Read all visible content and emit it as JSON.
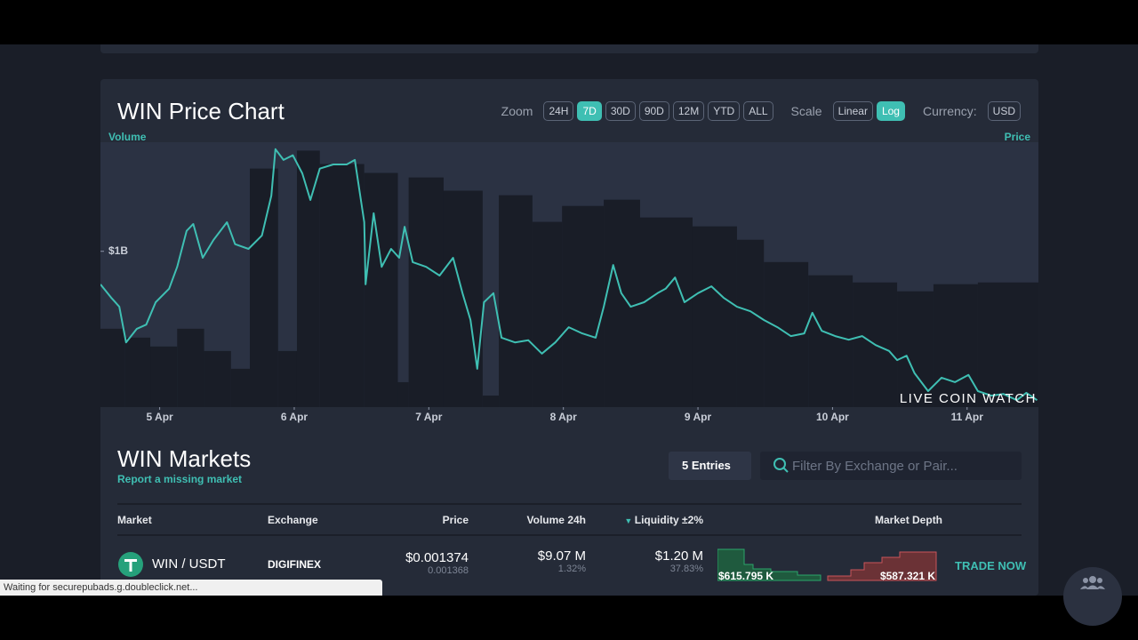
{
  "chart_data": {
    "type": "line",
    "title": "WIN Price Chart",
    "y_label": "Volume",
    "y2_label": "Price",
    "xlim": [
      4.56,
      11.53
    ],
    "xticks": [
      {
        "value": 5,
        "label": "5 Apr"
      },
      {
        "value": 6,
        "label": "6 Apr"
      },
      {
        "value": 7,
        "label": "7 Apr"
      },
      {
        "value": 8,
        "label": "8 Apr"
      },
      {
        "value": 9,
        "label": "9 Apr"
      },
      {
        "value": 10,
        "label": "10 Apr"
      },
      {
        "value": 11,
        "label": "11 Apr"
      }
    ],
    "ylim": [
      0,
      1700000000
    ],
    "yticks": [
      {
        "value": 1000000000,
        "label": "$1B"
      }
    ],
    "y2lim": [
      0.0013,
      0.00185
    ],
    "y2_log": true,
    "series": [
      {
        "name": "Volume",
        "type": "bar",
        "color": "#191d27",
        "x": [
          4.56,
          4.74,
          4.93,
          5.13,
          5.33,
          5.53,
          5.67,
          5.88,
          6.02,
          6.19,
          6.52,
          6.77,
          6.85,
          7.11,
          7.4,
          7.52,
          7.77,
          7.99,
          8.3,
          8.57,
          8.96,
          9.29,
          9.49,
          9.82,
          10.15,
          10.48,
          10.75,
          11.08
        ],
        "values": [
          503000000,
          446000000,
          389000000,
          503000000,
          360000000,
          246000000,
          1531000000,
          360000000,
          1646000000,
          1560000000,
          1503000000,
          160000000,
          1474000000,
          1389000000,
          74000000,
          1360000000,
          1189000000,
          1291000000,
          1331000000,
          1217000000,
          1160000000,
          1074000000,
          931000000,
          846000000,
          800000000,
          743000000,
          789000000,
          800000000
        ]
      },
      {
        "name": "Price",
        "axis": "y2",
        "color": "#3fbfb3",
        "x": [
          4.56,
          4.64,
          4.7,
          4.75,
          4.83,
          4.9,
          4.97,
          5.07,
          5.13,
          5.2,
          5.25,
          5.32,
          5.4,
          5.5,
          5.56,
          5.66,
          5.76,
          5.83,
          5.86,
          5.92,
          5.99,
          6.06,
          6.12,
          6.19,
          6.29,
          6.39,
          6.45,
          6.52,
          6.53,
          6.59,
          6.65,
          6.72,
          6.78,
          6.82,
          6.88,
          6.98,
          7.08,
          7.18,
          7.25,
          7.31,
          7.36,
          7.41,
          7.48,
          7.54,
          7.64,
          7.74,
          7.84,
          7.94,
          8.04,
          8.14,
          8.24,
          8.3,
          8.37,
          8.43,
          8.5,
          8.6,
          8.7,
          8.76,
          8.83,
          8.9,
          9.0,
          9.1,
          9.19,
          9.29,
          9.39,
          9.49,
          9.59,
          9.69,
          9.79,
          9.85,
          9.92,
          10.02,
          10.12,
          10.22,
          10.32,
          10.42,
          10.48,
          10.55,
          10.61,
          10.71,
          10.81,
          10.91,
          11.01,
          11.08,
          11.18,
          11.27,
          11.37,
          11.44,
          11.52
        ],
        "values": [
          0.001531,
          0.001504,
          0.001486,
          0.001417,
          0.001443,
          0.001451,
          0.001495,
          0.001522,
          0.001567,
          0.001644,
          0.001659,
          0.001586,
          0.001624,
          0.001663,
          0.001615,
          0.001605,
          0.001634,
          0.001723,
          0.001833,
          0.001807,
          0.001818,
          0.001775,
          0.001713,
          0.001786,
          0.001796,
          0.001796,
          0.001807,
          0.001663,
          0.001531,
          0.001683,
          0.001567,
          0.001605,
          0.001586,
          0.001653,
          0.001577,
          0.001567,
          0.001549,
          0.001586,
          0.001513,
          0.00146,
          0.001368,
          0.001495,
          0.001513,
          0.001426,
          0.001417,
          0.001421,
          0.001396,
          0.001417,
          0.001446,
          0.001434,
          0.001426,
          0.001486,
          0.001571,
          0.001513,
          0.001486,
          0.001495,
          0.001513,
          0.001522,
          0.001545,
          0.001495,
          0.001513,
          0.001527,
          0.001504,
          0.001486,
          0.001477,
          0.00146,
          0.001446,
          0.001429,
          0.001434,
          0.001474,
          0.001439,
          0.001429,
          0.001422,
          0.001429,
          0.001412,
          0.001401,
          0.001384,
          0.001392,
          0.00136,
          0.001328,
          0.001352,
          0.001344,
          0.001357,
          0.001328,
          0.00132,
          0.001323,
          0.001312,
          0.001325,
          0.001312
        ]
      }
    ],
    "watermark": "LIVE COIN WATCH"
  },
  "controls": {
    "zoom_label": "Zoom",
    "zoom_options": [
      "24H",
      "7D",
      "30D",
      "90D",
      "12M",
      "YTD",
      "ALL"
    ],
    "zoom_active": "7D",
    "scale_label": "Scale",
    "scale_options": [
      "Linear",
      "Log"
    ],
    "scale_active": "Log",
    "currency_label": "Currency:",
    "currency": "USD"
  },
  "markets": {
    "title": "WIN Markets",
    "report_link": "Report a missing market",
    "entries": "5 Entries",
    "search_placeholder": "Filter By Exchange or Pair...",
    "headers": [
      "Market",
      "Exchange",
      "Price",
      "Volume 24h",
      "Liquidity ±2%",
      "Market Depth"
    ],
    "rows": [
      {
        "market": "WIN / USDT",
        "exchange": "DIGIFINEX",
        "price": "$0.001374",
        "price_sub": "0.001368",
        "volume": "$9.07 M",
        "volume_sub": "1.32%",
        "liquidity": "$1.20 M",
        "liquidity_sub": "37.83%",
        "depth_bid": "$615.795 K",
        "depth_ask": "$587.321 K",
        "action": "TRADE NOW"
      }
    ]
  },
  "status_bar": "Waiting for securepubads.g.doubleclick.net..."
}
